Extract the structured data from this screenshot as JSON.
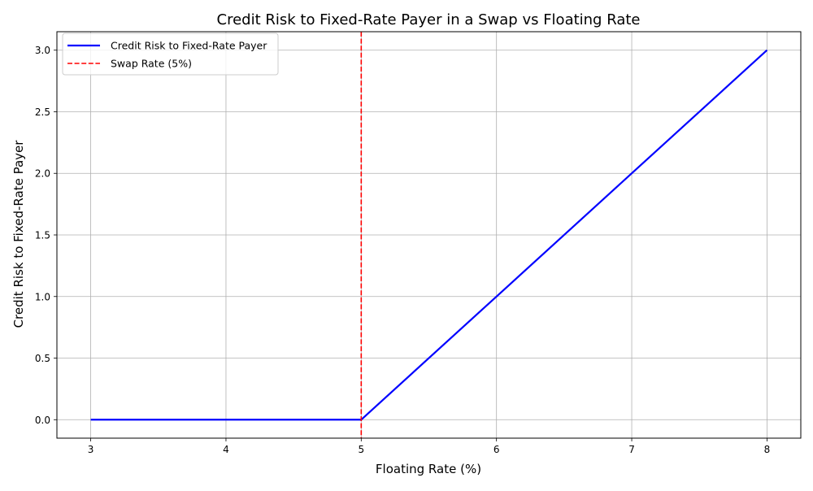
{
  "chart_data": {
    "type": "line",
    "title": "Credit Risk to Fixed-Rate Payer in a Swap vs Floating Rate",
    "xlabel": "Floating Rate (%)",
    "ylabel": "Credit Risk to Fixed-Rate Payer",
    "xlim": [
      2.75,
      8.25
    ],
    "ylim": [
      -0.15,
      3.15
    ],
    "xticks": [
      3,
      4,
      5,
      6,
      7,
      8
    ],
    "yticks": [
      0.0,
      0.5,
      1.0,
      1.5,
      2.0,
      2.5,
      3.0
    ],
    "xtick_labels": [
      "3",
      "4",
      "5",
      "6",
      "7",
      "8"
    ],
    "ytick_labels": [
      "0.0",
      "0.5",
      "1.0",
      "1.5",
      "2.0",
      "2.5",
      "3.0"
    ],
    "grid": true,
    "legend_position": "top-left",
    "series": [
      {
        "name": "Credit Risk to Fixed-Rate Payer",
        "style": "solid",
        "color": "#0000ff",
        "x": [
          3,
          4,
          5,
          6,
          7,
          8
        ],
        "y": [
          0,
          0,
          0,
          1,
          2,
          3
        ]
      }
    ],
    "reference_lines": [
      {
        "name": "Swap Rate (5%)",
        "orientation": "vertical",
        "x": 5,
        "style": "dashed",
        "color": "#ff0000"
      }
    ]
  }
}
